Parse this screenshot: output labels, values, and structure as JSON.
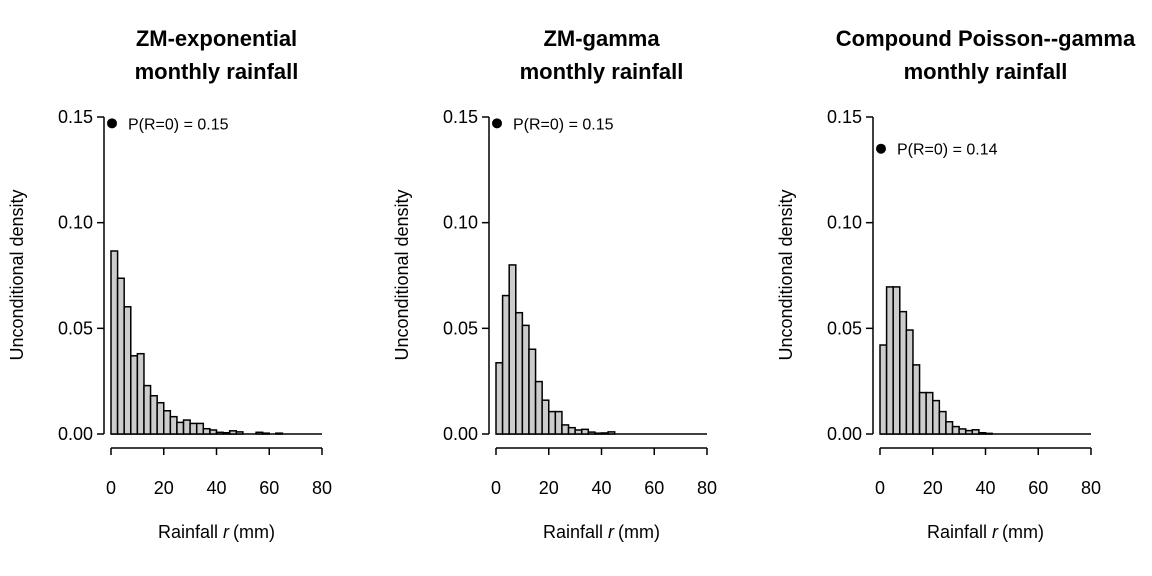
{
  "chart_data": [
    {
      "type": "bar",
      "title_lines": [
        "ZM-exponential",
        "monthly rainfall"
      ],
      "xlabel_pre": "Rainfall ",
      "xlabel_var": "r",
      "xlabel_unit": "(mm)",
      "ylabel": "Unconditional density",
      "xlim": [
        0,
        80
      ],
      "ylim": [
        0,
        0.15
      ],
      "xticks": [
        "0",
        "20",
        "40",
        "60",
        "80"
      ],
      "yticks": [
        "0.00",
        "0.05",
        "0.10",
        "0.15"
      ],
      "bin_width": 2.5,
      "values": [
        0.0866,
        0.0737,
        0.0602,
        0.037,
        0.038,
        0.0229,
        0.0181,
        0.0148,
        0.011,
        0.0082,
        0.0055,
        0.0066,
        0.005,
        0.005,
        0.0025,
        0.0019,
        0.0008,
        0.0006,
        0.0015,
        0.001,
        0,
        0,
        0.0008,
        0.0004,
        0,
        0.0004
      ],
      "point_mass": {
        "x": 0,
        "y": 0.147,
        "label": "P(R=0) = 0.15"
      },
      "bar_color": "#cccccc"
    },
    {
      "type": "bar",
      "title_lines": [
        "ZM-gamma",
        "monthly rainfall"
      ],
      "xlabel_pre": "Rainfall ",
      "xlabel_var": "r",
      "xlabel_unit": "(mm)",
      "ylabel": "Unconditional density",
      "xlim": [
        0,
        80
      ],
      "ylim": [
        0,
        0.15
      ],
      "xticks": [
        "0",
        "20",
        "40",
        "60",
        "80"
      ],
      "yticks": [
        "0.00",
        "0.05",
        "0.10",
        "0.15"
      ],
      "bin_width": 2.5,
      "values": [
        0.0337,
        0.0655,
        0.08,
        0.0574,
        0.0514,
        0.0401,
        0.0248,
        0.016,
        0.0106,
        0.0106,
        0.0043,
        0.003,
        0.0019,
        0.0022,
        0.0009,
        0.0004,
        0.0005,
        0.001
      ],
      "point_mass": {
        "x": 0,
        "y": 0.147,
        "label": "P(R=0) = 0.15"
      },
      "bar_color": "#cccccc"
    },
    {
      "type": "bar",
      "title_lines": [
        "Compound Poisson--gamma",
        "monthly rainfall"
      ],
      "xlabel_pre": "Rainfall ",
      "xlabel_var": "r",
      "xlabel_unit": "(mm)",
      "ylabel": "Unconditional density",
      "xlim": [
        0,
        80
      ],
      "ylim": [
        0,
        0.15
      ],
      "xticks": [
        "0",
        "20",
        "40",
        "60",
        "80"
      ],
      "yticks": [
        "0.00",
        "0.05",
        "0.10",
        "0.15"
      ],
      "bin_width": 2.5,
      "values": [
        0.0421,
        0.0696,
        0.0696,
        0.0579,
        0.0492,
        0.0327,
        0.0196,
        0.0196,
        0.0158,
        0.0106,
        0.0058,
        0.0035,
        0.0024,
        0.0016,
        0.002,
        0.0006,
        0.0003
      ],
      "point_mass": {
        "x": 0,
        "y": 0.135,
        "label": "P(R=0) = 0.14"
      },
      "bar_color": "#cccccc"
    }
  ]
}
